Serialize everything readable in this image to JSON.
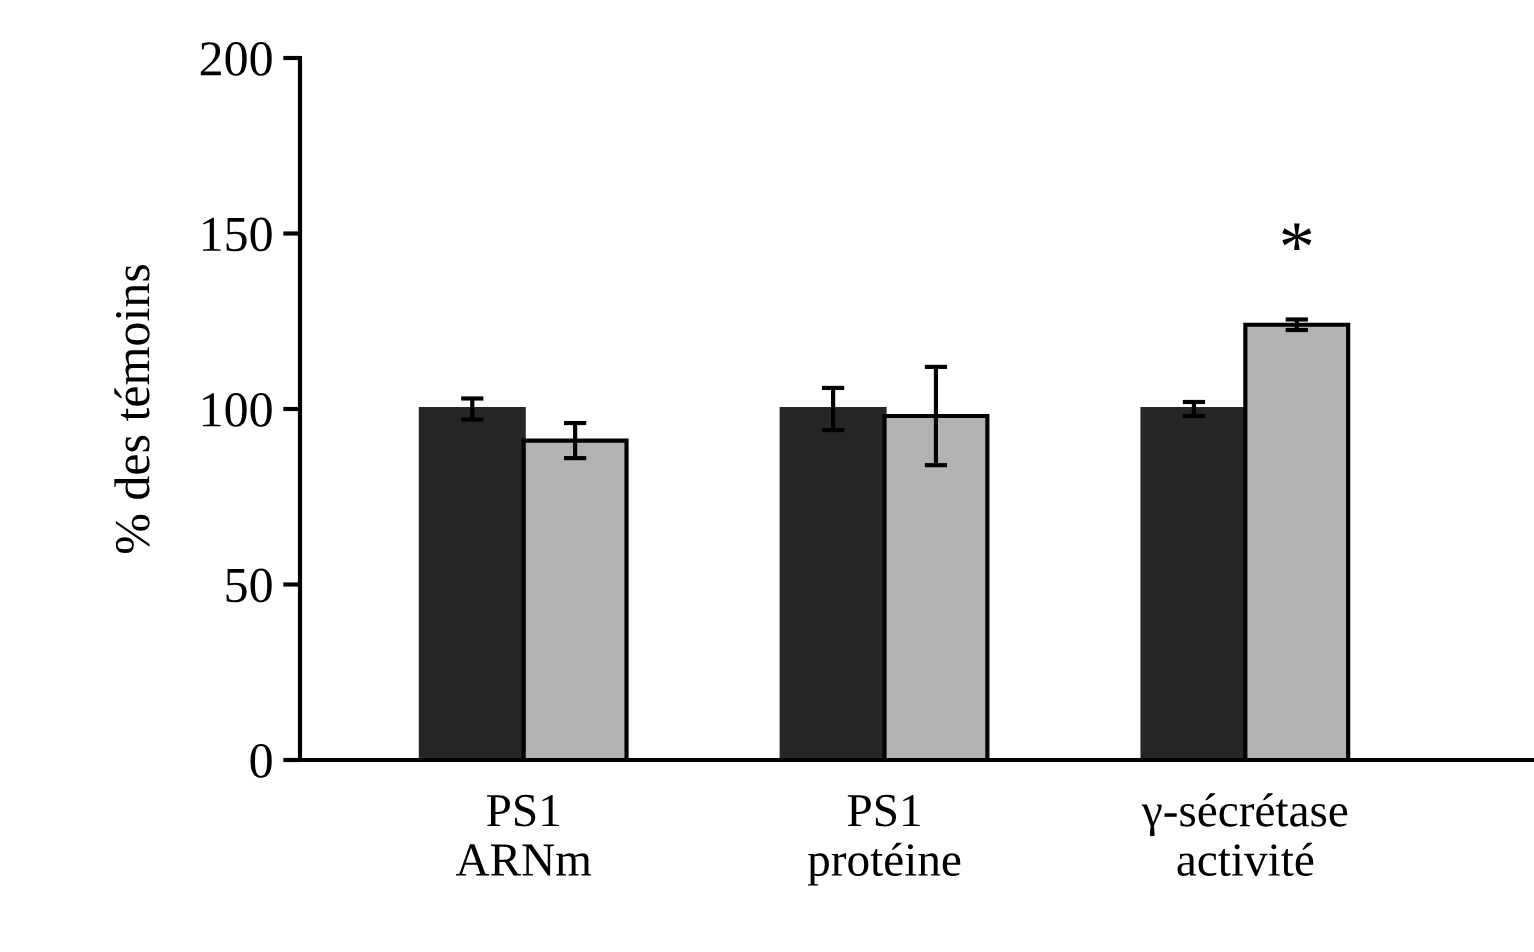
{
  "chart_data": {
    "type": "bar",
    "ylabel": "% des témoins",
    "categories": [
      "PS1\nARNm",
      "PS1\nprotéine",
      "γ-sécrétase\nactivité"
    ],
    "series": [
      {
        "color": "#262626",
        "values": [
          100,
          100,
          100
        ],
        "errors": [
          3,
          6,
          2
        ]
      },
      {
        "color": "#b2b2b2",
        "values": [
          91,
          98,
          124
        ],
        "errors": [
          5,
          14,
          1.5
        ]
      }
    ],
    "ylim": [
      0,
      200
    ],
    "yticks": [
      0,
      50,
      100,
      150,
      200
    ],
    "grid": false,
    "legend": false,
    "annotations": [
      "*"
    ]
  }
}
